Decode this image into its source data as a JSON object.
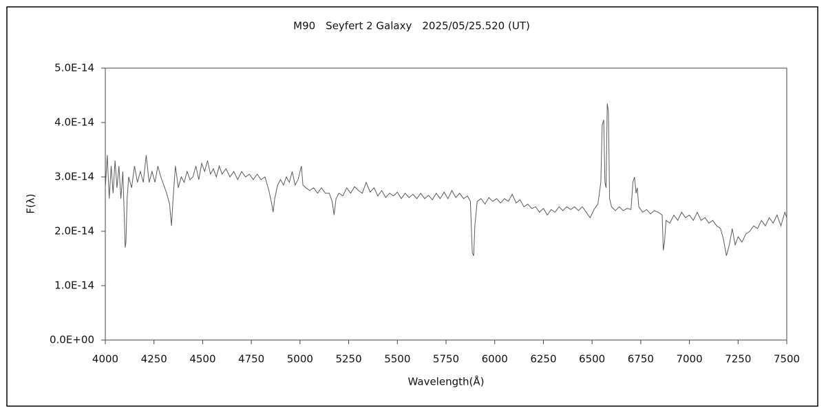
{
  "chart_data": {
    "type": "line",
    "title": "M90　Seyfert 2 Galaxy　2025/05/25.520 (UT)",
    "x_label": "Wavelength(Å)",
    "y_label": "F(λ)",
    "xlim": [
      4000,
      7500
    ],
    "xticks": [
      4000,
      4250,
      4500,
      4750,
      5000,
      5250,
      5500,
      5750,
      6000,
      6250,
      6500,
      6750,
      7000,
      7250,
      7500
    ],
    "ylim": [
      0,
      5e-14
    ],
    "yticks": [
      {
        "value": 0,
        "label": "0.0E+00"
      },
      {
        "value": 1e-14,
        "label": "1.0E-14"
      },
      {
        "value": 2e-14,
        "label": "2.0E-14"
      },
      {
        "value": 3e-14,
        "label": "3.0E-14"
      },
      {
        "value": 4e-14,
        "label": "4.0E-14"
      },
      {
        "value": 5e-14,
        "label": "5.0E-14"
      }
    ],
    "grid": false,
    "series": [
      {
        "color": "#5a5a5a",
        "x": [
          4000,
          4010,
          4020,
          4030,
          4040,
          4050,
          4060,
          4070,
          4080,
          4090,
          4098,
          4102,
          4106,
          4112,
          4120,
          4135,
          4150,
          4165,
          4180,
          4195,
          4210,
          4225,
          4240,
          4255,
          4270,
          4285,
          4300,
          4315,
          4330,
          4340,
          4348,
          4360,
          4375,
          4390,
          4405,
          4420,
          4435,
          4450,
          4465,
          4480,
          4495,
          4510,
          4525,
          4540,
          4555,
          4570,
          4585,
          4600,
          4620,
          4640,
          4660,
          4680,
          4700,
          4720,
          4740,
          4760,
          4780,
          4800,
          4820,
          4840,
          4855,
          4862,
          4870,
          4885,
          4900,
          4915,
          4930,
          4945,
          4960,
          4975,
          4990,
          5007,
          5015,
          5030,
          5050,
          5070,
          5090,
          5110,
          5130,
          5150,
          5165,
          5175,
          5185,
          5200,
          5220,
          5240,
          5260,
          5280,
          5300,
          5320,
          5340,
          5360,
          5380,
          5400,
          5420,
          5440,
          5460,
          5480,
          5500,
          5520,
          5540,
          5560,
          5580,
          5600,
          5620,
          5640,
          5660,
          5680,
          5700,
          5720,
          5740,
          5760,
          5780,
          5800,
          5820,
          5840,
          5860,
          5875,
          5885,
          5892,
          5898,
          5910,
          5930,
          5950,
          5970,
          5990,
          6010,
          6030,
          6050,
          6070,
          6090,
          6110,
          6130,
          6150,
          6170,
          6190,
          6210,
          6230,
          6250,
          6270,
          6290,
          6310,
          6330,
          6350,
          6370,
          6390,
          6410,
          6430,
          6450,
          6470,
          6490,
          6510,
          6530,
          6545,
          6552,
          6560,
          6566,
          6572,
          6578,
          6584,
          6590,
          6600,
          6620,
          6640,
          6660,
          6680,
          6700,
          6710,
          6718,
          6726,
          6732,
          6740,
          6760,
          6780,
          6800,
          6820,
          6840,
          6860,
          6866,
          6872,
          6880,
          6900,
          6920,
          6940,
          6960,
          6980,
          7000,
          7020,
          7040,
          7060,
          7080,
          7100,
          7120,
          7140,
          7160,
          7175,
          7190,
          7205,
          7220,
          7235,
          7250,
          7270,
          7290,
          7310,
          7330,
          7350,
          7370,
          7390,
          7410,
          7430,
          7450,
          7470,
          7490,
          7500
        ],
        "values": [
          2.8e-14,
          3.4e-14,
          2.6e-14,
          3.2e-14,
          2.7e-14,
          3.3e-14,
          2.8e-14,
          3.2e-14,
          2.6e-14,
          3.1e-14,
          2.2e-14,
          1.7e-14,
          1.8e-14,
          2.6e-14,
          3e-14,
          2.8e-14,
          3.2e-14,
          2.9e-14,
          3.1e-14,
          2.9e-14,
          3.4e-14,
          2.9e-14,
          3.1e-14,
          2.9e-14,
          3.2e-14,
          3e-14,
          2.85e-14,
          2.7e-14,
          2.5e-14,
          2.1e-14,
          2.6e-14,
          3.2e-14,
          2.8e-14,
          3e-14,
          2.9e-14,
          3.1e-14,
          2.95e-14,
          3e-14,
          3.2e-14,
          2.95e-14,
          3.25e-14,
          3.1e-14,
          3.3e-14,
          3.05e-14,
          3.15e-14,
          3e-14,
          3.2e-14,
          3.05e-14,
          3.15e-14,
          3e-14,
          3.1e-14,
          2.95e-14,
          3.1e-14,
          3e-14,
          3.05e-14,
          2.95e-14,
          3.05e-14,
          2.95e-14,
          3e-14,
          2.75e-14,
          2.5e-14,
          2.35e-14,
          2.6e-14,
          2.85e-14,
          2.95e-14,
          2.85e-14,
          3e-14,
          2.9e-14,
          3.1e-14,
          2.85e-14,
          2.95e-14,
          3.2e-14,
          2.85e-14,
          2.8e-14,
          2.75e-14,
          2.8e-14,
          2.7e-14,
          2.8e-14,
          2.7e-14,
          2.7e-14,
          2.55e-14,
          2.3e-14,
          2.6e-14,
          2.7e-14,
          2.65e-14,
          2.8e-14,
          2.7e-14,
          2.82e-14,
          2.75e-14,
          2.7e-14,
          2.9e-14,
          2.72e-14,
          2.8e-14,
          2.65e-14,
          2.75e-14,
          2.62e-14,
          2.7e-14,
          2.65e-14,
          2.72e-14,
          2.6e-14,
          2.7e-14,
          2.62e-14,
          2.68e-14,
          2.6e-14,
          2.7e-14,
          2.6e-14,
          2.66e-14,
          2.58e-14,
          2.7e-14,
          2.6e-14,
          2.72e-14,
          2.6e-14,
          2.75e-14,
          2.62e-14,
          2.7e-14,
          2.6e-14,
          2.65e-14,
          2.55e-14,
          1.6e-14,
          1.55e-14,
          2.1e-14,
          2.55e-14,
          2.6e-14,
          2.5e-14,
          2.62e-14,
          2.55e-14,
          2.6e-14,
          2.52e-14,
          2.6e-14,
          2.55e-14,
          2.68e-14,
          2.52e-14,
          2.58e-14,
          2.45e-14,
          2.5e-14,
          2.42e-14,
          2.45e-14,
          2.35e-14,
          2.42e-14,
          2.3e-14,
          2.4e-14,
          2.35e-14,
          2.45e-14,
          2.38e-14,
          2.45e-14,
          2.4e-14,
          2.45e-14,
          2.38e-14,
          2.45e-14,
          2.35e-14,
          2.25e-14,
          2.4e-14,
          2.5e-14,
          2.9e-14,
          3.95e-14,
          4.05e-14,
          2.9e-14,
          2.8e-14,
          4.35e-14,
          4.2e-14,
          2.6e-14,
          2.45e-14,
          2.38e-14,
          2.45e-14,
          2.38e-14,
          2.42e-14,
          2.4e-14,
          2.9e-14,
          3e-14,
          2.7e-14,
          2.8e-14,
          2.45e-14,
          2.35e-14,
          2.4e-14,
          2.32e-14,
          2.38e-14,
          2.35e-14,
          2.3e-14,
          1.65e-14,
          1.8e-14,
          2.2e-14,
          2.15e-14,
          2.3e-14,
          2.2e-14,
          2.35e-14,
          2.25e-14,
          2.3e-14,
          2.2e-14,
          2.35e-14,
          2.2e-14,
          2.25e-14,
          2.15e-14,
          2.2e-14,
          2.1e-14,
          2.05e-14,
          1.85e-14,
          1.55e-14,
          1.75e-14,
          2.05e-14,
          1.75e-14,
          1.9e-14,
          1.8e-14,
          1.95e-14,
          2e-14,
          2.1e-14,
          2.05e-14,
          2.2e-14,
          2.1e-14,
          2.25e-14,
          2.15e-14,
          2.3e-14,
          2.1e-14,
          2.35e-14,
          2.25e-14
        ]
      }
    ]
  }
}
